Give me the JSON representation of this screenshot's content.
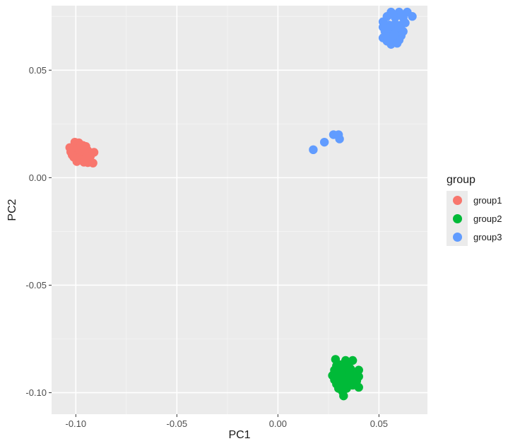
{
  "chart_data": {
    "type": "scatter",
    "title": "",
    "xlabel": "PC1",
    "ylabel": "PC2",
    "xlim": [
      -0.112,
      0.074
    ],
    "ylim": [
      -0.11,
      0.08
    ],
    "xticks": [
      -0.1,
      -0.05,
      0.0,
      0.05
    ],
    "xtick_labels": [
      "-0.10",
      "-0.05",
      "0.00",
      "0.05"
    ],
    "yticks": [
      -0.1,
      -0.05,
      0.0,
      0.05
    ],
    "ytick_labels": [
      "-0.10",
      "-0.05",
      "0.00",
      "0.05"
    ],
    "grid": true,
    "legend": {
      "title": "group",
      "position": "right"
    },
    "series": [
      {
        "name": "group1",
        "color": "#F8766D",
        "points": [
          [
            -0.1005,
            0.0165
          ],
          [
            -0.0985,
            0.0162
          ],
          [
            -0.0965,
            0.015
          ],
          [
            -0.103,
            0.014
          ],
          [
            -0.101,
            0.014
          ],
          [
            -0.099,
            0.0135
          ],
          [
            -0.097,
            0.013
          ],
          [
            -0.095,
            0.0145
          ],
          [
            -0.094,
            0.0125
          ],
          [
            -0.1025,
            0.012
          ],
          [
            -0.1005,
            0.0118
          ],
          [
            -0.0985,
            0.0112
          ],
          [
            -0.0965,
            0.011
          ],
          [
            -0.0945,
            0.0105
          ],
          [
            -0.0925,
            0.0115
          ],
          [
            -0.101,
            0.0095
          ],
          [
            -0.099,
            0.009
          ],
          [
            -0.097,
            0.0085
          ],
          [
            -0.095,
            0.009
          ],
          [
            -0.093,
            0.008
          ],
          [
            -0.0995,
            0.0075
          ],
          [
            -0.096,
            0.0072
          ],
          [
            -0.094,
            0.007
          ],
          [
            -0.0915,
            0.0068
          ],
          [
            -0.091,
            0.0118
          ],
          [
            -0.0975,
            0.015
          ],
          [
            -0.0955,
            0.013
          ],
          [
            -0.1018,
            0.0105
          ],
          [
            -0.0948,
            0.0095
          ],
          [
            -0.0928,
            0.01
          ]
        ]
      },
      {
        "name": "group2",
        "color": "#00BA38",
        "points": [
          [
            0.0285,
            -0.0845
          ],
          [
            0.0335,
            -0.085
          ],
          [
            0.037,
            -0.085
          ],
          [
            0.031,
            -0.087
          ],
          [
            0.035,
            -0.0875
          ],
          [
            0.028,
            -0.0895
          ],
          [
            0.032,
            -0.089
          ],
          [
            0.036,
            -0.089
          ],
          [
            0.04,
            -0.0895
          ],
          [
            0.027,
            -0.092
          ],
          [
            0.03,
            -0.0915
          ],
          [
            0.034,
            -0.0915
          ],
          [
            0.038,
            -0.092
          ],
          [
            0.04,
            -0.0925
          ],
          [
            0.028,
            -0.094
          ],
          [
            0.032,
            -0.094
          ],
          [
            0.035,
            -0.0935
          ],
          [
            0.039,
            -0.0945
          ],
          [
            0.029,
            -0.096
          ],
          [
            0.033,
            -0.096
          ],
          [
            0.037,
            -0.0965
          ],
          [
            0.04,
            -0.0975
          ],
          [
            0.03,
            -0.098
          ],
          [
            0.034,
            -0.098
          ],
          [
            0.032,
            -0.0995
          ],
          [
            0.0325,
            -0.1015
          ],
          [
            0.0355,
            -0.09
          ],
          [
            0.031,
            -0.0905
          ],
          [
            0.0365,
            -0.0955
          ],
          [
            0.029,
            -0.0875
          ]
        ]
      },
      {
        "name": "group3",
        "color": "#619CFF",
        "points": [
          [
            0.052,
            0.0725
          ],
          [
            0.056,
            0.077
          ],
          [
            0.06,
            0.077
          ],
          [
            0.064,
            0.077
          ],
          [
            0.0665,
            0.075
          ],
          [
            0.054,
            0.075
          ],
          [
            0.058,
            0.0745
          ],
          [
            0.062,
            0.0745
          ],
          [
            0.052,
            0.07
          ],
          [
            0.055,
            0.071
          ],
          [
            0.058,
            0.0715
          ],
          [
            0.061,
            0.071
          ],
          [
            0.063,
            0.072
          ],
          [
            0.053,
            0.068
          ],
          [
            0.056,
            0.068
          ],
          [
            0.059,
            0.0685
          ],
          [
            0.062,
            0.068
          ],
          [
            0.052,
            0.065
          ],
          [
            0.055,
            0.0655
          ],
          [
            0.058,
            0.066
          ],
          [
            0.061,
            0.066
          ],
          [
            0.054,
            0.0635
          ],
          [
            0.057,
            0.0635
          ],
          [
            0.06,
            0.064
          ],
          [
            0.056,
            0.062
          ],
          [
            0.059,
            0.0625
          ],
          [
            0.057,
            0.076
          ],
          [
            0.06,
            0.07
          ],
          [
            0.0545,
            0.0695
          ],
          [
            0.0575,
            0.0665
          ],
          [
            0.0175,
            0.013
          ],
          [
            0.023,
            0.0165
          ],
          [
            0.0275,
            0.02
          ],
          [
            0.03,
            0.02
          ],
          [
            0.0305,
            0.018
          ]
        ]
      }
    ]
  }
}
